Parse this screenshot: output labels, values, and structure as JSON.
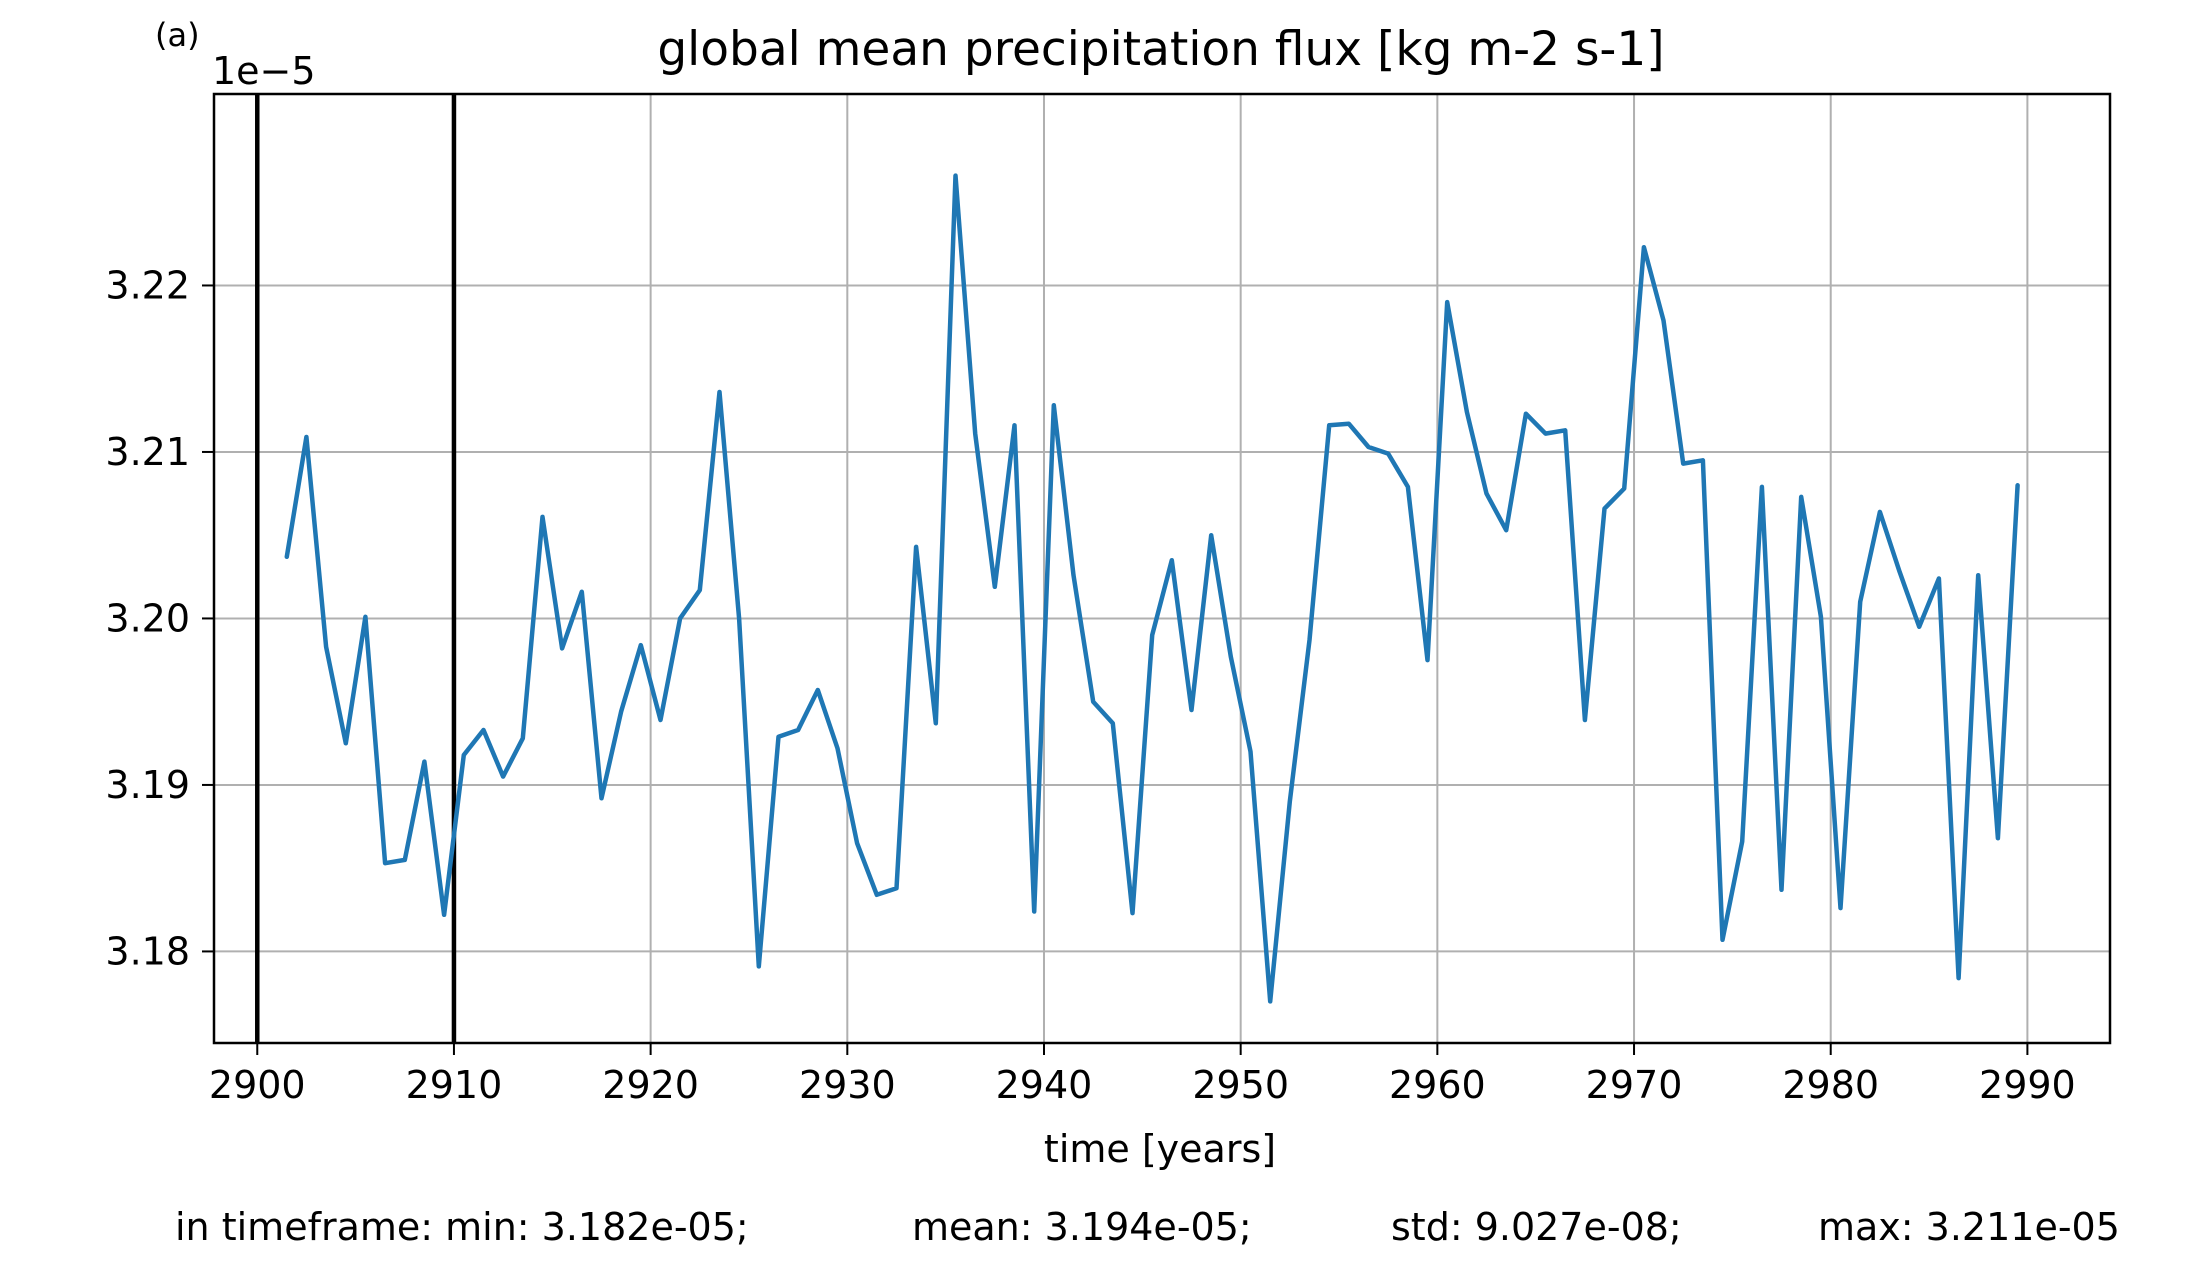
{
  "panel_label": "(a)",
  "stats": {
    "min": "in timeframe: min: 3.182e-05;",
    "mean": "mean: 3.194e-05;",
    "std": "std: 9.027e-08;",
    "max": "max: 3.211e-05"
  },
  "chart_data": {
    "type": "line",
    "title": "global mean precipitation flux [kg m-2 s-1]",
    "xlabel": "time [years]",
    "ylabel": "",
    "y_offset_label": "1e−5",
    "xlim": [
      2897.8,
      2994.2
    ],
    "ylim": [
      3.1745,
      3.2315
    ],
    "xticks": [
      2900,
      2910,
      2920,
      2930,
      2940,
      2950,
      2960,
      2970,
      2980,
      2990
    ],
    "yticks": [
      3.18,
      3.19,
      3.2,
      3.21,
      3.22
    ],
    "ytick_labels": [
      "3.18",
      "3.19",
      "3.20",
      "3.21",
      "3.22"
    ],
    "grid": true,
    "line_color": "#1f77b4",
    "vlines": [
      2900,
      2910
    ],
    "vline_color": "#000000",
    "series": [
      {
        "x": [
          2901.5,
          2902.5,
          2903.5,
          2904.5,
          2905.5,
          2906.5,
          2907.5,
          2908.5,
          2909.5,
          2910.5,
          2911.5,
          2912.5,
          2913.5,
          2914.5,
          2915.5,
          2916.5,
          2917.5,
          2918.5,
          2919.5,
          2920.5,
          2921.5,
          2922.5,
          2923.5,
          2924.5,
          2925.5,
          2926.5,
          2927.5,
          2928.5,
          2929.5,
          2930.5,
          2931.5,
          2932.5,
          2933.5,
          2934.5,
          2935.5,
          2936.5,
          2937.5,
          2938.5,
          2939.5,
          2940.5,
          2941.5,
          2942.5,
          2943.5,
          2944.5,
          2945.5,
          2946.5,
          2947.5,
          2948.5,
          2949.5,
          2950.5,
          2951.5,
          2952.5,
          2953.5,
          2954.5,
          2955.5,
          2956.5,
          2957.5,
          2958.5,
          2959.5,
          2960.5,
          2961.5,
          2962.5,
          2963.5,
          2964.5,
          2965.5,
          2966.5,
          2967.5,
          2968.5,
          2969.5,
          2970.5,
          2971.5,
          2972.5,
          2973.5,
          2974.5,
          2975.5,
          2976.5,
          2977.5,
          2978.5,
          2979.5,
          2980.5,
          2981.5,
          2982.5,
          2983.5,
          2984.5,
          2985.5,
          2986.5,
          2987.5,
          2988.5,
          2989.5
        ],
        "y": [
          3.2037,
          3.2109,
          3.1983,
          3.1925,
          3.2001,
          3.1853,
          3.1855,
          3.1914,
          3.1822,
          3.1918,
          3.1933,
          3.1905,
          3.1928,
          3.2061,
          3.1982,
          3.2016,
          3.1892,
          3.1944,
          3.1984,
          3.1939,
          3.2,
          3.2017,
          3.2136,
          3.2,
          3.1791,
          3.1929,
          3.1933,
          3.1957,
          3.1922,
          3.1865,
          3.1834,
          3.1838,
          3.2043,
          3.1937,
          3.2266,
          3.2111,
          3.2019,
          3.2116,
          3.1824,
          3.2128,
          3.2026,
          3.195,
          3.1937,
          3.1823,
          3.199,
          3.2035,
          3.1945,
          3.205,
          3.1977,
          3.192,
          3.177,
          3.189,
          3.1987,
          3.2116,
          3.2117,
          3.2103,
          3.2099,
          3.2079,
          3.1975,
          3.219,
          3.2124,
          3.2075,
          3.2053,
          3.2123,
          3.2111,
          3.2113,
          3.1939,
          3.2066,
          3.2078,
          3.2223,
          3.2179,
          3.2093,
          3.2095,
          3.1807,
          3.1866,
          3.2079,
          3.1837,
          3.2073,
          3.2001,
          3.1826,
          3.201,
          3.2064,
          3.2028,
          3.1995,
          3.2024,
          3.1784,
          3.2026,
          3.1868,
          3.208
        ]
      }
    ]
  }
}
